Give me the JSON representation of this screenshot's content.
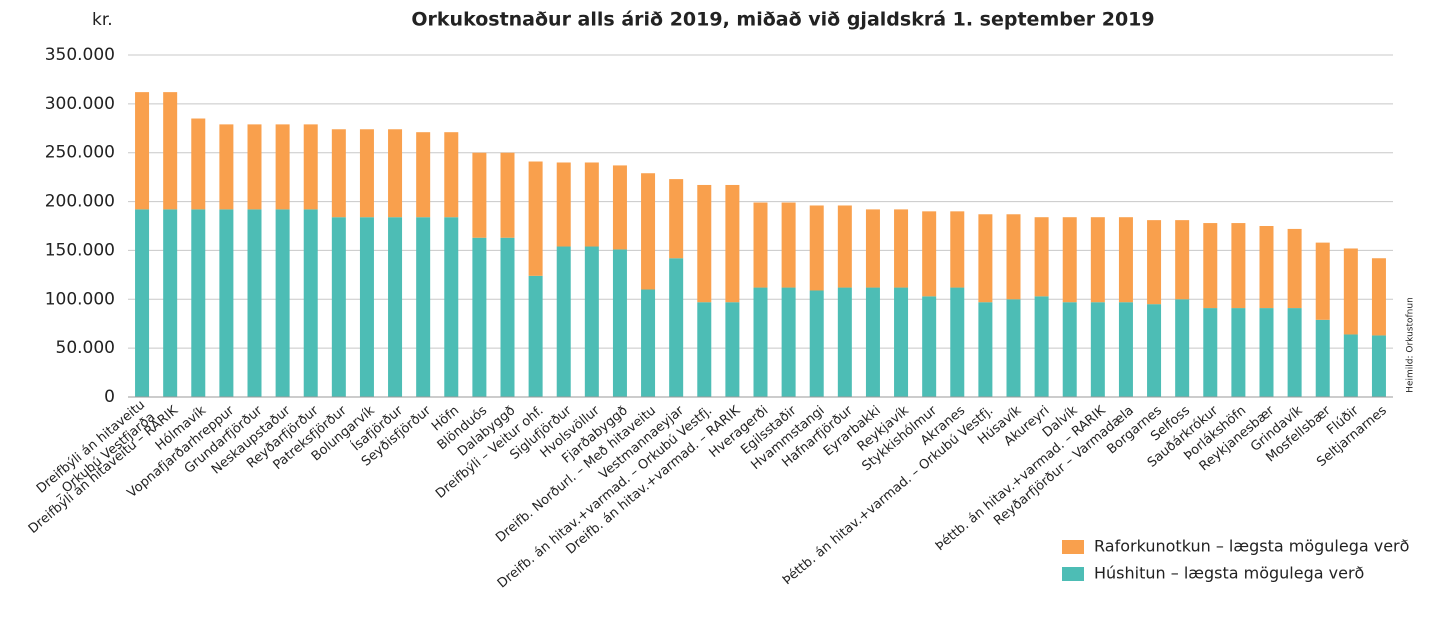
{
  "chart_data": {
    "type": "stacked_bar",
    "title": "Orkukostnaður alls árið 2019, miðað við gjaldskrá 1. september 2019",
    "y_label": "kr.",
    "source": "Heimild: Orkustofnun",
    "categories": [
      "Dreifbýli án hitaveitu\n– Orkubú Vestfjarða",
      "Dreifbýli án hitaveitu – RARIK",
      "Hólmavík",
      "Vopnafjarðarhreppur",
      "Grundarfjörður",
      "Neskaupstaður",
      "Reyðarfjörður",
      "Patreksfjörður",
      "Bolungarvík",
      "Ísafjörður",
      "Seyðisfjörður",
      "Höfn",
      "Blönduós",
      "Dalabyggð",
      "Dreifbýli – Veitur ohf.",
      "Siglufjörður",
      "Hvolsvöllur",
      "Fjarðabyggð",
      "Dreifb. Norðurl. – Með hitaveitu",
      "Vestmannaeyjar",
      "Dreifb. án hitav.+varmad. – Orkubú Vestfj.",
      "Dreifb. án hitav.+varmad. – RARIK",
      "Hveragerði",
      "Egilsstaðir",
      "Hvammstangi",
      "Hafnarfjörður",
      "Eyrarbakki",
      "Reykjavík",
      "Stykkishólmur",
      "Akranes",
      "Þéttb. án hitav.+varmad. – Orkubú Vestfj.",
      "Húsavík",
      "Akureyri",
      "Dalvík",
      "Þéttb. án hitav.+varmad. – RARIK",
      "Reyðarfjörður – Varmadæla",
      "Borgarnes",
      "Selfoss",
      "Sauðárkrókur",
      "Þorlákshöfn",
      "Reykjanesbær",
      "Grindavík",
      "Mosfellsbær",
      "Flúðir",
      "Seltjarnarnes"
    ],
    "series": [
      {
        "name": "Húshitun – lægsta mögulega verð",
        "color": "#4dbdb5",
        "values": [
          192000,
          192000,
          192000,
          192000,
          192000,
          192000,
          192000,
          184000,
          184000,
          184000,
          184000,
          184000,
          163000,
          163000,
          124000,
          154000,
          154000,
          151000,
          110000,
          142000,
          97000,
          97000,
          112000,
          112000,
          109000,
          112000,
          112000,
          112000,
          103000,
          112000,
          97000,
          100000,
          103000,
          97000,
          97000,
          97000,
          95000,
          100000,
          91000,
          91000,
          91000,
          91000,
          79000,
          64000,
          63000
        ]
      },
      {
        "name": "Raforkunotkun – lægsta mögulega verð",
        "color": "#f9a04d",
        "values": [
          120000,
          120000,
          93000,
          87000,
          87000,
          87000,
          87000,
          90000,
          90000,
          90000,
          87000,
          87000,
          87000,
          87000,
          117000,
          86000,
          86000,
          86000,
          119000,
          81000,
          120000,
          120000,
          87000,
          87000,
          87000,
          84000,
          80000,
          80000,
          87000,
          78000,
          90000,
          87000,
          81000,
          87000,
          87000,
          87000,
          86000,
          81000,
          87000,
          87000,
          84000,
          81000,
          79000,
          88000,
          79000
        ]
      }
    ],
    "ylim": [
      0,
      350000
    ],
    "yticks": [
      0,
      {
        "value": 50000,
        "label": "50.000"
      },
      {
        "value": 100000,
        "label": "100.000"
      },
      {
        "value": 150000,
        "label": "150.000"
      },
      {
        "value": 200000,
        "label": "200.000"
      },
      {
        "value": 250000,
        "label": "250.000"
      },
      {
        "value": 300000,
        "label": "300.000"
      },
      {
        "value": 350000,
        "label": "350.000"
      }
    ],
    "grid": true,
    "legend": "bottom-right"
  }
}
